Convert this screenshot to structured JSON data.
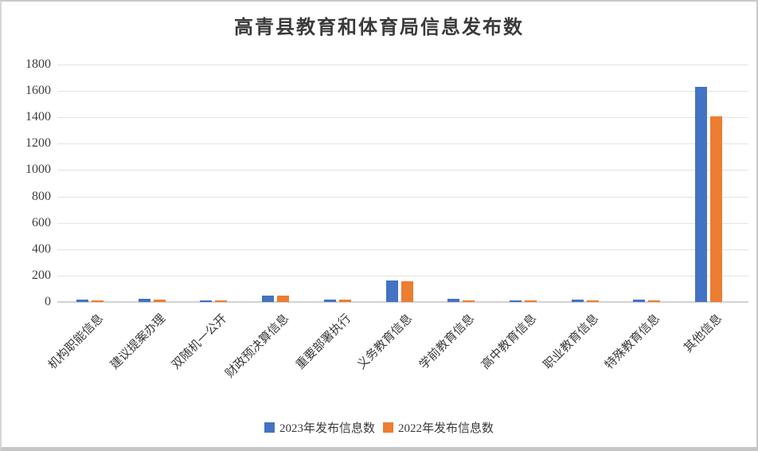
{
  "page": {
    "background": "#ffffff",
    "frame_border_color": "#c9c9c9"
  },
  "chart_data": {
    "type": "bar",
    "title": "高青县教育和体育局信息发布数",
    "categories": [
      "机构职能信息",
      "建议提案办理",
      "双随机一公开",
      "财政预决算信息",
      "重要部署执行",
      "义务教育信息",
      "学前教育信息",
      "高中教育信息",
      "职业教育信息",
      "特殊教育信息",
      "其他信息"
    ],
    "series": [
      {
        "name": "2023年发布信息数",
        "color": "#4472C4",
        "values": [
          20,
          22,
          14,
          50,
          20,
          165,
          24,
          15,
          18,
          16,
          1630
        ]
      },
      {
        "name": "2022年发布信息数",
        "color": "#ED7D31",
        "values": [
          10,
          18,
          10,
          48,
          20,
          160,
          12,
          12,
          14,
          14,
          1405
        ]
      }
    ],
    "ylim": [
      0,
      1800
    ],
    "ytick_step": 200,
    "yticks": [
      0,
      200,
      400,
      600,
      800,
      1000,
      1200,
      1400,
      1600,
      1800
    ],
    "xlabel": "",
    "ylabel": "",
    "grid": true,
    "gridline_color": "#e3e3e3",
    "axis_line_color": "#d2d2d2",
    "text_color": "#3a3a3a",
    "legend_position": "bottom"
  }
}
